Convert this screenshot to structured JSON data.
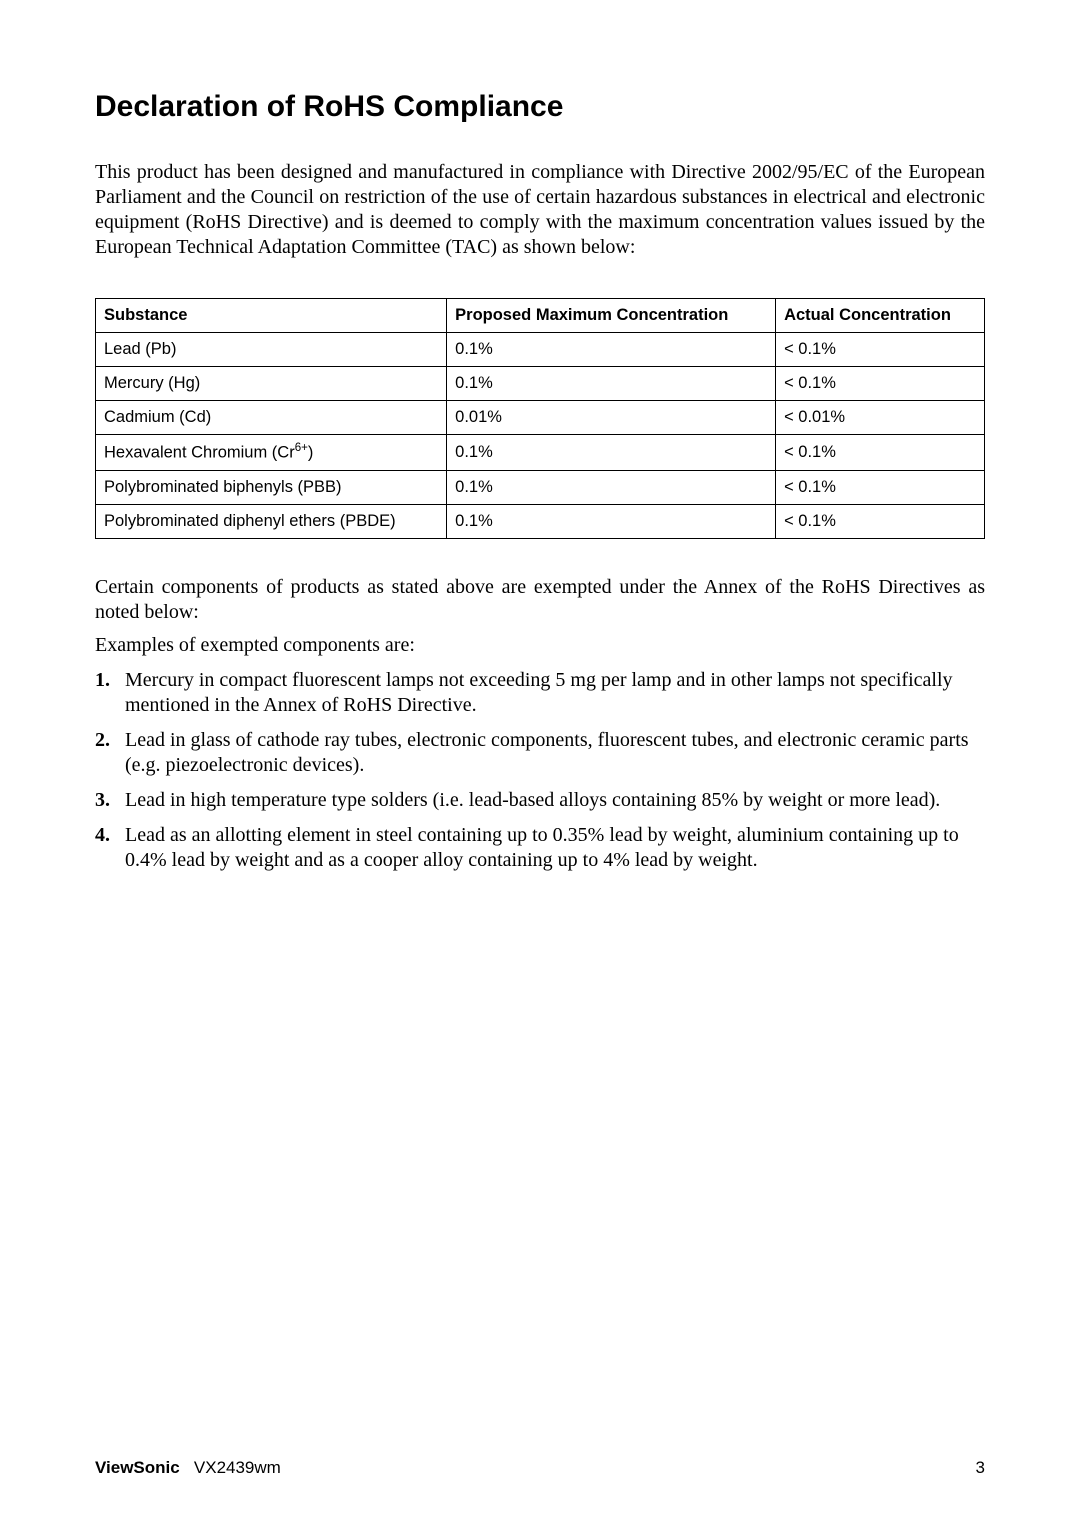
{
  "title": "Declaration of RoHS Compliance",
  "intro": "This product has been designed and manufactured in compliance with Directive 2002/95/EC of the European Parliament and the Council on restriction of the use of certain hazardous substances in electrical and electronic equipment (RoHS Directive) and is deemed to comply with the maximum concentration values issued by the European Technical Adaptation Committee (TAC) as shown below:",
  "table": {
    "headers": [
      "Substance",
      "Proposed Maximum Concentration",
      "Actual Concentration"
    ],
    "rows": [
      [
        "Lead (Pb)",
        "0.1%",
        "< 0.1%"
      ],
      [
        "Mercury (Hg)",
        "0.1%",
        "< 0.1%"
      ],
      [
        "Cadmium (Cd)",
        "0.01%",
        "< 0.01%"
      ],
      [
        "Hexavalent Chromium (Cr6+)",
        "0.1%",
        "< 0.1%"
      ],
      [
        "Polybrominated biphenyls (PBB)",
        "0.1%",
        "< 0.1%"
      ],
      [
        "Polybrominated diphenyl ethers (PBDE)",
        "0.1%",
        "< 0.1%"
      ]
    ],
    "col_widths": [
      "39.5%",
      "37%",
      "23.5%"
    ]
  },
  "exempt_intro": "Certain components of products as stated above are exempted under the Annex of the RoHS Directives as noted below:",
  "examples_label": "Examples of exempted components are:",
  "list": [
    "Mercury in compact fluorescent lamps not exceeding 5 mg per lamp and in other lamps not specifically mentioned in the Annex of RoHS Directive.",
    "Lead in glass of cathode ray tubes, electronic components, fluorescent tubes, and electronic ceramic parts (e.g. piezoelectronic devices).",
    "Lead in high temperature type solders (i.e. lead-based alloys containing 85% by weight or more lead).",
    "Lead as an allotting element in steel containing up to 0.35% lead by weight, aluminium containing up to 0.4% lead by weight and as a cooper alloy containing up to 4% lead by weight."
  ],
  "footer": {
    "brand": "ViewSonic",
    "model": "VX2439wm",
    "page": "3"
  },
  "colors": {
    "text": "#000000",
    "background": "#ffffff",
    "border": "#000000"
  },
  "fonts": {
    "body": "Times New Roman",
    "heading": "Arial",
    "table": "Arial",
    "footer": "Arial",
    "title_size_pt": 22,
    "body_size_pt": 15,
    "table_size_pt": 12
  }
}
